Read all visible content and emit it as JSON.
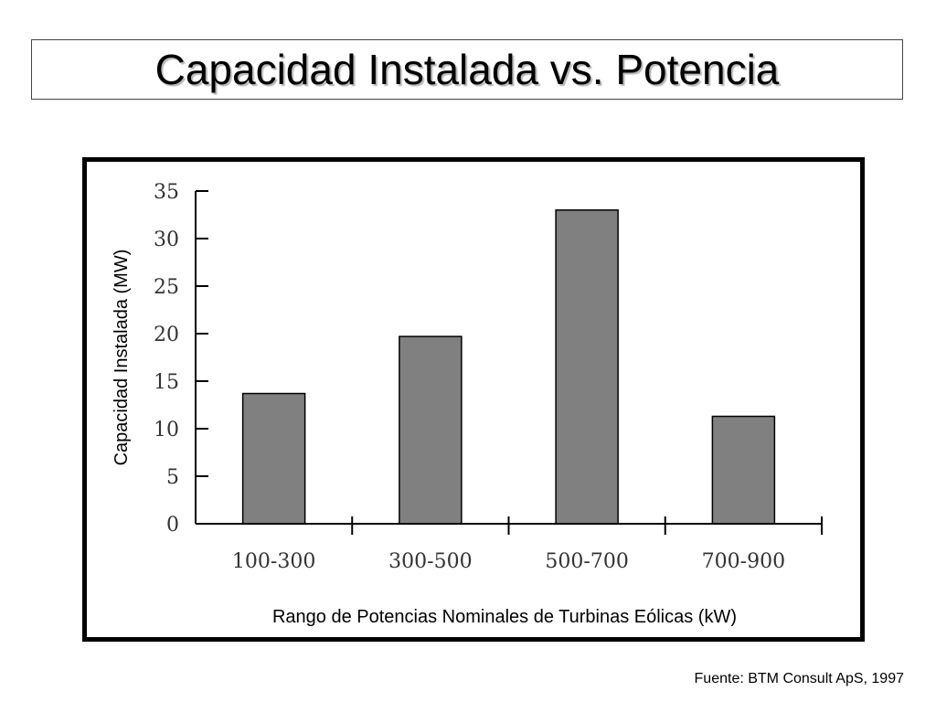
{
  "slide": {
    "title": "Capacidad Instalada vs. Potencia",
    "source": "Fuente: BTM Consult ApS, 1997"
  },
  "colors": {
    "bar_fill": "#808080",
    "bar_stroke": "#000000",
    "axis": "#000000",
    "frame": "#000000"
  },
  "chart_data": {
    "type": "bar",
    "title": "",
    "xlabel": "Rango de Potencias Nominales de Turbinas Eólicas (kW)",
    "ylabel": "Capacidad Instalada (MW)",
    "categories": [
      "100-300",
      "300-500",
      "500-700",
      "700-900"
    ],
    "values": [
      13.7,
      19.7,
      33.0,
      11.3
    ],
    "ylim": [
      0,
      35
    ],
    "yticks": [
      0,
      5,
      10,
      15,
      20,
      25,
      30,
      35
    ],
    "grid": false,
    "legend": "none"
  }
}
